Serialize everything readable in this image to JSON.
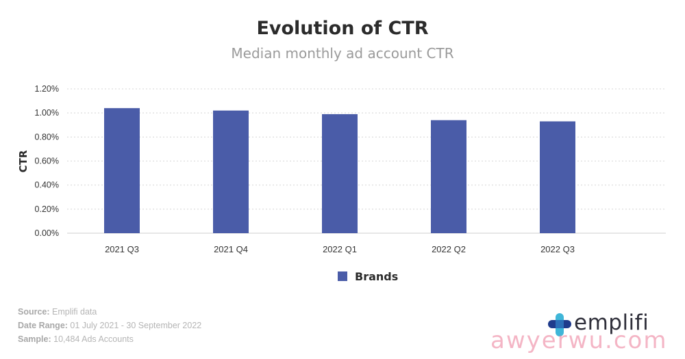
{
  "chart_data": {
    "type": "bar",
    "title": "Evolution of CTR",
    "subtitle": "Median monthly ad account CTR",
    "ylabel": "CTR",
    "xlabel": "",
    "categories": [
      "2021 Q3",
      "2021 Q4",
      "2022 Q1",
      "2022 Q2",
      "2022 Q3"
    ],
    "series": [
      {
        "name": "Brands",
        "values": [
          1.04,
          1.02,
          0.99,
          0.94,
          0.93
        ]
      }
    ],
    "ylim": [
      0,
      1.2
    ],
    "yticks": [
      "0.00%",
      "0.20%",
      "0.40%",
      "0.60%",
      "0.80%",
      "1.00%",
      "1.20%"
    ],
    "grid": true,
    "legend": "bottom-center",
    "colors": {
      "bar": "#4a5ca8",
      "grid": "#d4d4d4",
      "axis": "#cfcfcf"
    }
  },
  "footer": {
    "source_label": "Source:",
    "source_value": "Emplifi data",
    "date_label": "Date Range:",
    "date_value": "01 July 2021 - 30 September 2022",
    "sample_label": "Sample:",
    "sample_value": "10,484 Ads Accounts"
  },
  "logo": {
    "text": "emplifi",
    "icon": "emplifi-cross-icon",
    "colors": [
      "#1f3b8c",
      "#3fb6d8"
    ]
  },
  "watermark": "awyerwu.com"
}
